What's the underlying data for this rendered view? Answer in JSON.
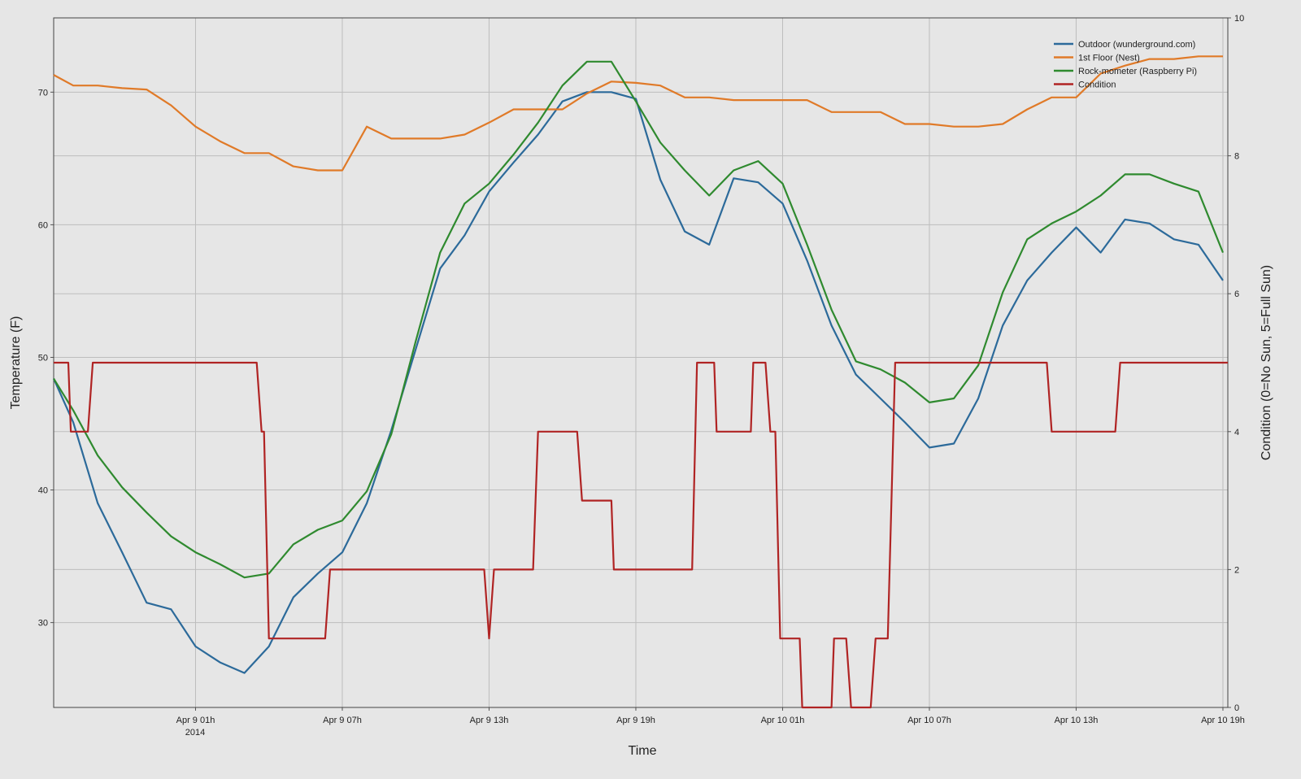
{
  "chart_data": {
    "type": "line",
    "x_label": "Time",
    "y_label": "Temperature (F)",
    "y2_label": "Condition (0=No Sun, 5=Full Sun)",
    "x_year_label": "2014",
    "xlim": [
      -4.8,
      43.2
    ],
    "xticks": [
      {
        "value": 1,
        "label": "Apr 9 01h"
      },
      {
        "value": 7,
        "label": "Apr 9 07h"
      },
      {
        "value": 13,
        "label": "Apr 9 13h"
      },
      {
        "value": 19,
        "label": "Apr 9 19h"
      },
      {
        "value": 25,
        "label": "Apr 10 01h"
      },
      {
        "value": 31,
        "label": "Apr 10 07h"
      },
      {
        "value": 37,
        "label": "Apr 10 13h"
      },
      {
        "value": 43,
        "label": "Apr 10 19h"
      }
    ],
    "ylim": [
      23.6,
      75.6
    ],
    "yticks": [
      30,
      40,
      50,
      60,
      70
    ],
    "y2lim": [
      0,
      10
    ],
    "y2ticks": [
      0,
      2,
      4,
      6,
      8,
      10
    ],
    "grid": true,
    "legend": "top-right",
    "x": [
      -4.8,
      -4,
      -3,
      -2,
      -1,
      0,
      1,
      2,
      3,
      4,
      5,
      6,
      7,
      8,
      9,
      10,
      11,
      12,
      13,
      14,
      15,
      16,
      17,
      18,
      19,
      20,
      21,
      22,
      23,
      24,
      25,
      26,
      27,
      28,
      29,
      30,
      31,
      32,
      33,
      34,
      35,
      36,
      37,
      38,
      39,
      40,
      41,
      42,
      43
    ],
    "series": [
      {
        "name": "Outdoor (wunderground.com)",
        "color": "#2c6a9a",
        "values": [
          48.4,
          45.1,
          39,
          35.3,
          31.5,
          31,
          28.2,
          27,
          26.2,
          28.2,
          31.9,
          33.7,
          35.3,
          39,
          44.5,
          50.6,
          56.7,
          59.2,
          62.5,
          64.7,
          66.8,
          69.3,
          70,
          70,
          69.5,
          63.4,
          59.5,
          58.5,
          63.5,
          63.2,
          61.6,
          57.3,
          52.4,
          48.7,
          46.9,
          45.1,
          43.2,
          43.5,
          46.9,
          52.4,
          55.8,
          57.9,
          59.8,
          57.9,
          60.4,
          60.1,
          58.9,
          58.5,
          55.8
        ]
      },
      {
        "name": "1st Floor (Nest)",
        "color": "#e07a28",
        "values": [
          71.3,
          70.5,
          70.5,
          70.3,
          70.2,
          69,
          67.4,
          66.3,
          65.4,
          65.4,
          64.4,
          64.1,
          64.1,
          67.4,
          66.5,
          66.5,
          66.5,
          66.8,
          67.7,
          68.7,
          68.7,
          68.7,
          69.9,
          70.8,
          70.7,
          70.5,
          69.6,
          69.6,
          69.4,
          69.4,
          69.4,
          69.4,
          68.5,
          68.5,
          68.5,
          67.6,
          67.6,
          67.4,
          67.4,
          67.6,
          68.7,
          69.6,
          69.6,
          71.4,
          72,
          72.5,
          72.5,
          72.7,
          72.7
        ]
      },
      {
        "name": "Rock-mometer (Raspberry Pi)",
        "color": "#2f8a2f",
        "values": [
          48.4,
          46,
          42.6,
          40.2,
          38.3,
          36.5,
          35.3,
          34.4,
          33.4,
          33.7,
          35.9,
          37,
          37.7,
          39.9,
          44.2,
          51.2,
          57.9,
          61.6,
          63.1,
          65.3,
          67.7,
          70.5,
          72.3,
          72.3,
          69.3,
          66.2,
          64.1,
          62.2,
          64.1,
          64.8,
          63.1,
          58.5,
          53.6,
          49.7,
          49.1,
          48.1,
          46.6,
          46.9,
          49.4,
          54.9,
          58.9,
          60.1,
          61,
          62.2,
          63.8,
          63.8,
          63.1,
          62.5,
          57.9
        ]
      },
      {
        "name": "Condition",
        "color": "#b02424",
        "axis": "y2",
        "x": [
          -4.8,
          -4.2,
          -4.1,
          -3.4,
          -3.2,
          3.5,
          3.7,
          3.8,
          4.0,
          6.3,
          6.5,
          12.8,
          13,
          13.2,
          14.8,
          15,
          16.6,
          16.8,
          18,
          18.1,
          21.3,
          21.5,
          22.2,
          22.3,
          23.7,
          23.8,
          24.3,
          24.5,
          24.7,
          24.9,
          25.7,
          25.8,
          27,
          27.1,
          27.6,
          27.8,
          28.6,
          28.8,
          29.3,
          29.6,
          35.8,
          36,
          38.6,
          38.8,
          43.2
        ],
        "values": [
          5,
          5,
          4,
          4,
          5,
          5,
          4,
          4,
          1,
          1,
          2,
          2,
          1,
          2,
          2,
          4,
          4,
          3,
          3,
          2,
          2,
          5,
          5,
          4,
          4,
          5,
          5,
          4,
          4,
          1,
          1,
          0,
          0,
          1,
          1,
          0,
          0,
          1,
          1,
          5,
          5,
          4,
          4,
          5,
          5
        ]
      }
    ]
  }
}
